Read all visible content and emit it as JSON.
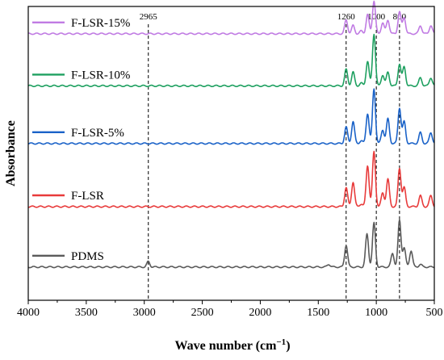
{
  "chart_data": {
    "type": "line",
    "xlabel": "Wave number (cm",
    "xlabel_sup": "−1",
    "xlabel_close": ")",
    "ylabel": "Absorbance",
    "xlim": [
      4000,
      500
    ],
    "xticks": [
      4000,
      3500,
      3000,
      2500,
      2000,
      1500,
      1000,
      500
    ],
    "grid": false,
    "marker_lines": [
      {
        "x": 2965,
        "label": "2965"
      },
      {
        "x": 1260,
        "label": "1260"
      },
      {
        "x": 1000,
        "label": "1000"
      },
      {
        "x": 800,
        "label": "800"
      }
    ],
    "series": [
      {
        "name": "F-LSR-15%",
        "color": "#c07be3",
        "baseline": 0.93,
        "peaks": [
          [
            1260,
            0.05
          ],
          [
            1200,
            0.03
          ],
          [
            1130,
            0.01
          ],
          [
            1075,
            0.07
          ],
          [
            1020,
            0.12
          ],
          [
            945,
            0.04
          ],
          [
            900,
            0.05
          ],
          [
            800,
            0.08
          ],
          [
            760,
            0.06
          ],
          [
            620,
            0.03
          ],
          [
            530,
            0.03
          ]
        ]
      },
      {
        "name": "F-LSR-10%",
        "color": "#1ea060",
        "baseline": 0.74,
        "peaks": [
          [
            1260,
            0.06
          ],
          [
            1200,
            0.05
          ],
          [
            1130,
            0.01
          ],
          [
            1075,
            0.09
          ],
          [
            1020,
            0.19
          ],
          [
            945,
            0.04
          ],
          [
            900,
            0.05
          ],
          [
            800,
            0.08
          ],
          [
            760,
            0.07
          ],
          [
            620,
            0.03
          ],
          [
            530,
            0.03
          ]
        ]
      },
      {
        "name": "F-LSR-5%",
        "color": "#1a62c8",
        "baseline": 0.53,
        "peaks": [
          [
            1260,
            0.06
          ],
          [
            1200,
            0.08
          ],
          [
            1130,
            0.01
          ],
          [
            1075,
            0.11
          ],
          [
            1020,
            0.2
          ],
          [
            945,
            0.05
          ],
          [
            900,
            0.09
          ],
          [
            800,
            0.13
          ],
          [
            760,
            0.08
          ],
          [
            620,
            0.04
          ],
          [
            530,
            0.04
          ]
        ]
      },
      {
        "name": "F-LSR",
        "color": "#e83b3b",
        "baseline": 0.3,
        "peaks": [
          [
            1260,
            0.07
          ],
          [
            1200,
            0.09
          ],
          [
            1130,
            0.01
          ],
          [
            1075,
            0.15
          ],
          [
            1020,
            0.2
          ],
          [
            945,
            0.05
          ],
          [
            900,
            0.1
          ],
          [
            800,
            0.14
          ],
          [
            760,
            0.07
          ],
          [
            620,
            0.04
          ],
          [
            530,
            0.04
          ]
        ]
      },
      {
        "name": "PDMS",
        "color": "#5a5a5a",
        "baseline": 0.08,
        "peaks": [
          [
            2965,
            0.02
          ],
          [
            1410,
            0.01
          ],
          [
            1260,
            0.08
          ],
          [
            1080,
            0.12
          ],
          [
            1020,
            0.16
          ],
          [
            860,
            0.05
          ],
          [
            800,
            0.17
          ],
          [
            760,
            0.07
          ],
          [
            700,
            0.06
          ],
          [
            620,
            0.01
          ]
        ]
      }
    ]
  }
}
